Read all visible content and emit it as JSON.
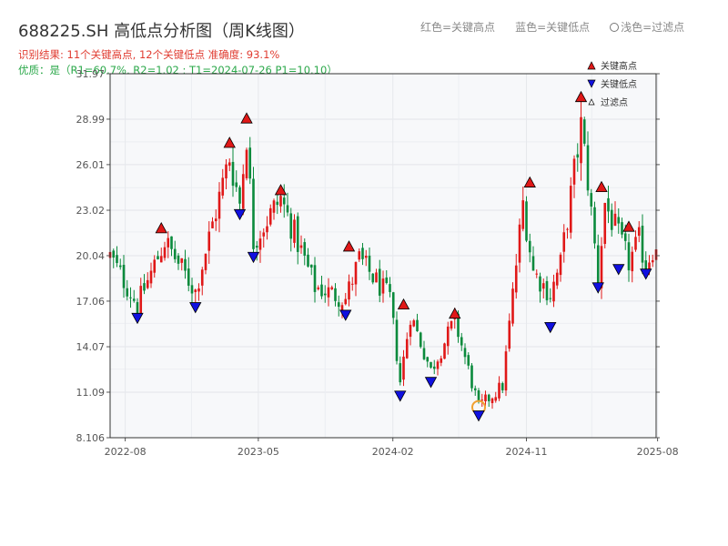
{
  "header": {
    "title": "688225.SH 高低点分析图（周K线图）",
    "result_line": "识别结果: 11个关键高点, 12个关键低点  准确度: 93.1%",
    "quality_line": "优质：是（R1=60.7%, R2=1.02 ; T1=2024-07-26 P1=10.10）"
  },
  "top_legend": {
    "red": "红色=关键高点",
    "blue": "蓝色=关键低点",
    "light": "浅色=过滤点"
  },
  "colors": {
    "up": "#e01818",
    "down": "#0a8a3c",
    "high_marker": "#e01818",
    "low_marker": "#1010e0",
    "highlight_ring": "#f0a030",
    "plot_bg": "#f7f8fa"
  },
  "chart_data": {
    "type": "candlestick",
    "ylim": [
      8.106,
      31.97
    ],
    "y_ticks": [
      "8.106",
      "11.09",
      "14.07",
      "17.06",
      "20.04",
      "23.02",
      "26.01",
      "28.99",
      "31.97"
    ],
    "x_ticks": [
      "2022-08",
      "2023-05",
      "2024-02",
      "2024-11",
      "2025-08"
    ],
    "x_range": [
      "2022-07-01",
      "2025-07-25"
    ],
    "legend": [
      {
        "name": "关键高点",
        "shape": "triangle-up",
        "color": "#e01818"
      },
      {
        "name": "关键低点",
        "shape": "triangle-down",
        "color": "#1010e0"
      },
      {
        "name": "过滤点",
        "shape": "triangle-up-hollow",
        "color": "#ffffff"
      }
    ],
    "anchors": [
      [
        "2022-07-01",
        20.0
      ],
      [
        "2022-08-26",
        16.8
      ],
      [
        "2022-10-21",
        21.0
      ],
      [
        "2022-12-23",
        17.7
      ],
      [
        "2023-03-03",
        26.5
      ],
      [
        "2023-03-24",
        23.5
      ],
      [
        "2023-04-07",
        28.0
      ],
      [
        "2023-04-21",
        21.0
      ],
      [
        "2023-06-16",
        23.8
      ],
      [
        "2023-08-25",
        18.0
      ],
      [
        "2023-10-27",
        17.2
      ],
      [
        "2023-11-24",
        19.8
      ],
      [
        "2024-01-26",
        17.2
      ],
      [
        "2024-02-16",
        11.8
      ],
      [
        "2024-03-08",
        16.2
      ],
      [
        "2024-04-19",
        12.5
      ],
      [
        "2024-06-07",
        15.8
      ],
      [
        "2024-07-26",
        10.1
      ],
      [
        "2024-09-13",
        11.5
      ],
      [
        "2024-10-25",
        23.5
      ],
      [
        "2024-11-15",
        19.0
      ],
      [
        "2024-12-20",
        17.5
      ],
      [
        "2025-01-10",
        19.5
      ],
      [
        "2025-02-21",
        28.5
      ],
      [
        "2025-03-07",
        25.0
      ],
      [
        "2025-03-28",
        18.5
      ],
      [
        "2025-04-11",
        23.5
      ],
      [
        "2025-05-30",
        19.6
      ],
      [
        "2025-06-20",
        21.0
      ],
      [
        "2025-07-04",
        19.5
      ],
      [
        "2025-07-25",
        21.0
      ]
    ],
    "key_highs": [
      {
        "date": "2022-10-14",
        "price": 21.3
      },
      {
        "date": "2023-03-03",
        "price": 26.9
      },
      {
        "date": "2023-04-07",
        "price": 28.5
      },
      {
        "date": "2023-06-16",
        "price": 23.8
      },
      {
        "date": "2023-11-03",
        "price": 20.1
      },
      {
        "date": "2024-02-23",
        "price": 16.3
      },
      {
        "date": "2024-06-07",
        "price": 15.7
      },
      {
        "date": "2024-11-08",
        "price": 24.3
      },
      {
        "date": "2025-02-21",
        "price": 29.9
      },
      {
        "date": "2025-04-04",
        "price": 24.0
      },
      {
        "date": "2025-05-30",
        "price": 21.4
      }
    ],
    "key_lows": [
      {
        "date": "2022-08-26",
        "price": 16.5
      },
      {
        "date": "2022-12-23",
        "price": 17.2
      },
      {
        "date": "2023-03-24",
        "price": 23.3
      },
      {
        "date": "2023-04-21",
        "price": 20.5
      },
      {
        "date": "2023-10-27",
        "price": 16.7
      },
      {
        "date": "2024-02-16",
        "price": 11.4
      },
      {
        "date": "2024-04-19",
        "price": 12.3
      },
      {
        "date": "2024-07-26",
        "price": 10.1
      },
      {
        "date": "2024-12-20",
        "price": 15.9
      },
      {
        "date": "2025-03-28",
        "price": 18.5
      },
      {
        "date": "2025-05-09",
        "price": 19.7
      },
      {
        "date": "2025-07-04",
        "price": 19.4
      }
    ],
    "highlight": {
      "date": "2024-07-26",
      "price": 10.1
    }
  }
}
